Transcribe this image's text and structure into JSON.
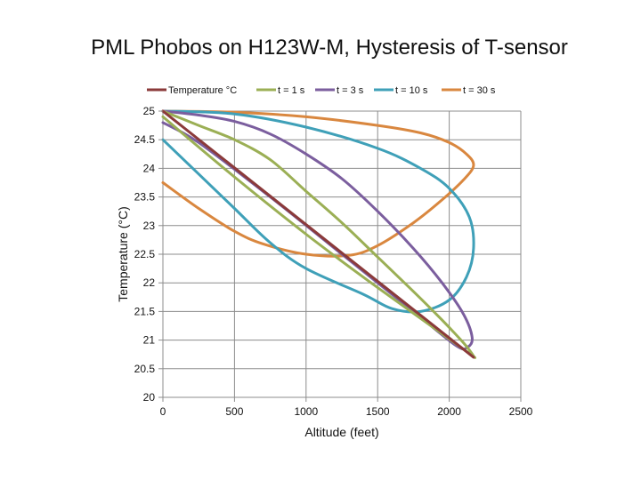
{
  "chart_data": {
    "type": "line",
    "title": "PML Phobos on H123W-M, Hysteresis of T-sensor",
    "xlabel": "Altitude (feet)",
    "ylabel": "Temperature (°C)",
    "xlim": [
      0,
      2500
    ],
    "ylim": [
      20,
      25
    ],
    "x_ticks": [
      "0",
      "500",
      "1000",
      "1500",
      "2000",
      "2500"
    ],
    "y_ticks": [
      "20",
      "20.5",
      "21",
      "21.5",
      "22",
      "22.5",
      "23",
      "23.5",
      "24",
      "24.5",
      "25"
    ],
    "grid": "vertical and horizontal",
    "legend_position": "top",
    "series": [
      {
        "name": "Temperature °C",
        "color": "#8B3A3A",
        "points": [
          [
            0,
            25
          ],
          [
            2170,
            20.7
          ]
        ]
      },
      {
        "name": "t = 1 s",
        "color": "#9BAF55",
        "points": [
          [
            0,
            25
          ],
          [
            250,
            24.75
          ],
          [
            500,
            24.5
          ],
          [
            750,
            24.15
          ],
          [
            1000,
            23.6
          ],
          [
            1250,
            23.05
          ],
          [
            1500,
            22.45
          ],
          [
            1750,
            21.85
          ],
          [
            1950,
            21.35
          ],
          [
            2100,
            20.95
          ],
          [
            2170,
            20.72
          ],
          [
            2150,
            20.75
          ],
          [
            1900,
            21.2
          ],
          [
            1400,
            22.1
          ],
          [
            1000,
            22.85
          ],
          [
            500,
            23.85
          ],
          [
            0,
            24.9
          ]
        ]
      },
      {
        "name": "t = 3 s",
        "color": "#7B5E9E",
        "points": [
          [
            0,
            25
          ],
          [
            250,
            24.93
          ],
          [
            500,
            24.82
          ],
          [
            750,
            24.6
          ],
          [
            1000,
            24.25
          ],
          [
            1250,
            23.82
          ],
          [
            1500,
            23.25
          ],
          [
            1750,
            22.6
          ],
          [
            1950,
            22.0
          ],
          [
            2100,
            21.45
          ],
          [
            2160,
            21.05
          ],
          [
            2130,
            20.88
          ],
          [
            2050,
            20.9
          ],
          [
            1750,
            21.5
          ],
          [
            1250,
            22.5
          ],
          [
            750,
            23.5
          ],
          [
            250,
            24.45
          ],
          [
            0,
            24.8
          ]
        ]
      },
      {
        "name": "t = 10 s",
        "color": "#3FA0B8",
        "points": [
          [
            0,
            25
          ],
          [
            500,
            24.95
          ],
          [
            1000,
            24.72
          ],
          [
            1500,
            24.35
          ],
          [
            1800,
            24.0
          ],
          [
            2000,
            23.65
          ],
          [
            2140,
            23.15
          ],
          [
            2170,
            22.6
          ],
          [
            2120,
            22.1
          ],
          [
            2000,
            21.7
          ],
          [
            1800,
            21.5
          ],
          [
            1600,
            21.55
          ],
          [
            1400,
            21.8
          ],
          [
            1000,
            22.25
          ],
          [
            750,
            22.7
          ],
          [
            500,
            23.3
          ],
          [
            250,
            23.9
          ],
          [
            0,
            24.5
          ]
        ]
      },
      {
        "name": "t = 30 s",
        "color": "#D9873F",
        "points": [
          [
            0,
            25
          ],
          [
            500,
            24.98
          ],
          [
            1000,
            24.9
          ],
          [
            1500,
            24.75
          ],
          [
            1800,
            24.62
          ],
          [
            2000,
            24.45
          ],
          [
            2120,
            24.25
          ],
          [
            2170,
            24.05
          ],
          [
            2100,
            23.8
          ],
          [
            1950,
            23.45
          ],
          [
            1750,
            23.05
          ],
          [
            1500,
            22.65
          ],
          [
            1300,
            22.48
          ],
          [
            1000,
            22.5
          ],
          [
            700,
            22.68
          ],
          [
            500,
            22.9
          ],
          [
            250,
            23.3
          ],
          [
            0,
            23.75
          ]
        ]
      }
    ]
  }
}
